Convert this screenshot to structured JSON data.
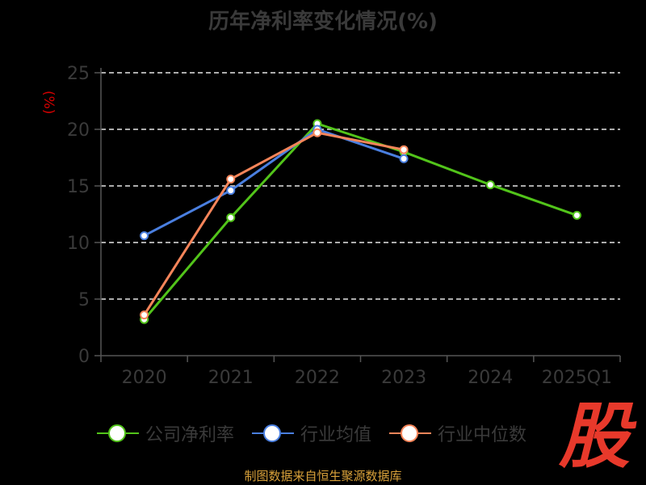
{
  "chart_data": {
    "type": "line",
    "title": "历年净利率变化情况(%)",
    "ylabel": "(%)",
    "xlabel": "",
    "categories": [
      "2020",
      "2021",
      "2022",
      "2023",
      "2024",
      "2025Q1"
    ],
    "ylim": [
      0,
      25
    ],
    "yticks": [
      0,
      5,
      10,
      15,
      20,
      25
    ],
    "grid": true,
    "legend_position": "bottom",
    "series": [
      {
        "name": "公司净利率",
        "color": "#52c41a",
        "values": [
          3.2,
          12.2,
          20.5,
          18.0,
          15.1,
          12.4
        ]
      },
      {
        "name": "行业均值",
        "color": "#4a7fe0",
        "values": [
          10.6,
          14.6,
          20.0,
          17.4,
          null,
          null
        ]
      },
      {
        "name": "行业中位数",
        "color": "#f7855a",
        "values": [
          3.6,
          15.6,
          19.7,
          18.2,
          null,
          null
        ]
      }
    ]
  },
  "footer": {
    "source": "制图数据来自恒生聚源数据库",
    "logo_text": "股"
  },
  "colors": {
    "axis": "#555555",
    "grid": "#e6e6e6",
    "text": "#3a3a3a"
  }
}
